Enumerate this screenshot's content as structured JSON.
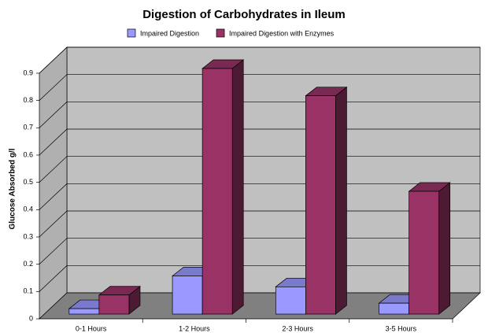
{
  "chart_data": {
    "type": "bar3d",
    "title": "Digestion of Carbohydrates in Ileum",
    "y_label": "Glucose Absorbed g/l",
    "categories": [
      "0-1 Hours",
      "1-2 Hours",
      "2-3 Hours",
      "3-5 Hours"
    ],
    "series": [
      {
        "name": "Impaired Digestion",
        "color": "#9999ff",
        "values": [
          0.02,
          0.14,
          0.1,
          0.04
        ]
      },
      {
        "name": "Impaired Digestion with Enzymes",
        "color": "#993366",
        "values": [
          0.07,
          0.9,
          0.8,
          0.45
        ]
      }
    ],
    "ylim": [
      0,
      0.9
    ],
    "yticks": [
      0,
      0.1,
      0.2,
      0.3,
      0.4,
      0.5,
      0.6,
      0.7,
      0.8,
      0.9
    ],
    "grid": true,
    "legend": "top"
  }
}
